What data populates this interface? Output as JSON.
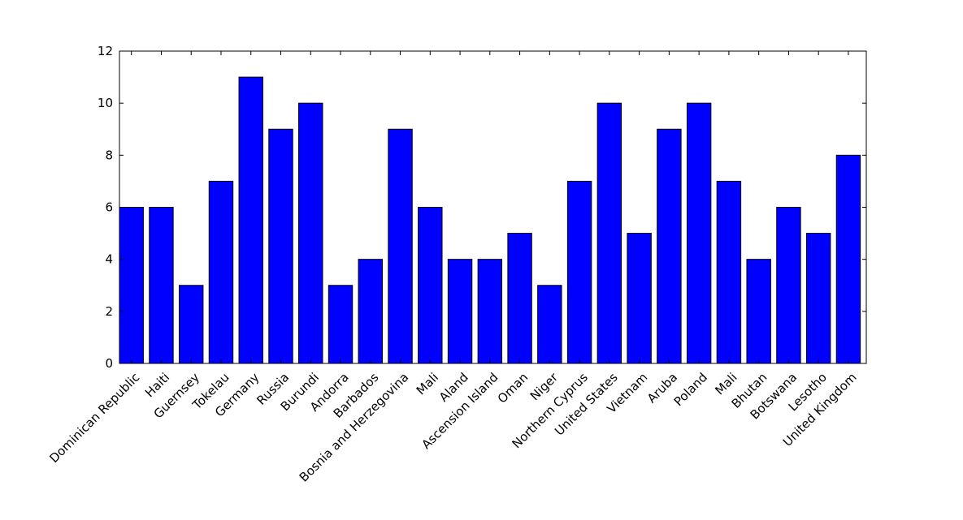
{
  "chart_data": {
    "type": "bar",
    "categories": [
      "Dominican Republic",
      "Haiti",
      "Guernsey",
      "Tokelau",
      "Germany",
      "Russia",
      "Burundi",
      "Andorra",
      "Barbados",
      "Bosnia and Herzegovina",
      "Mali",
      "Aland",
      "Ascension Island",
      "Oman",
      "Niger",
      "Northern Cyprus",
      "United States",
      "Vietnam",
      "Aruba",
      "Poland",
      "Mali",
      "Bhutan",
      "Botswana",
      "Lesotho",
      "United Kingdom"
    ],
    "values": [
      6,
      6,
      3,
      7,
      11,
      9,
      10,
      3,
      4,
      9,
      6,
      4,
      4,
      5,
      3,
      7,
      10,
      5,
      9,
      10,
      7,
      4,
      6,
      5,
      8
    ],
    "ylim": [
      0,
      12
    ],
    "yticks": [
      0,
      2,
      4,
      6,
      8,
      10,
      12
    ],
    "title": "",
    "xlabel": "",
    "ylabel": "",
    "grid": false,
    "legend": "none",
    "colors": {
      "bar": "#0000ff",
      "edge": "#000000"
    }
  }
}
